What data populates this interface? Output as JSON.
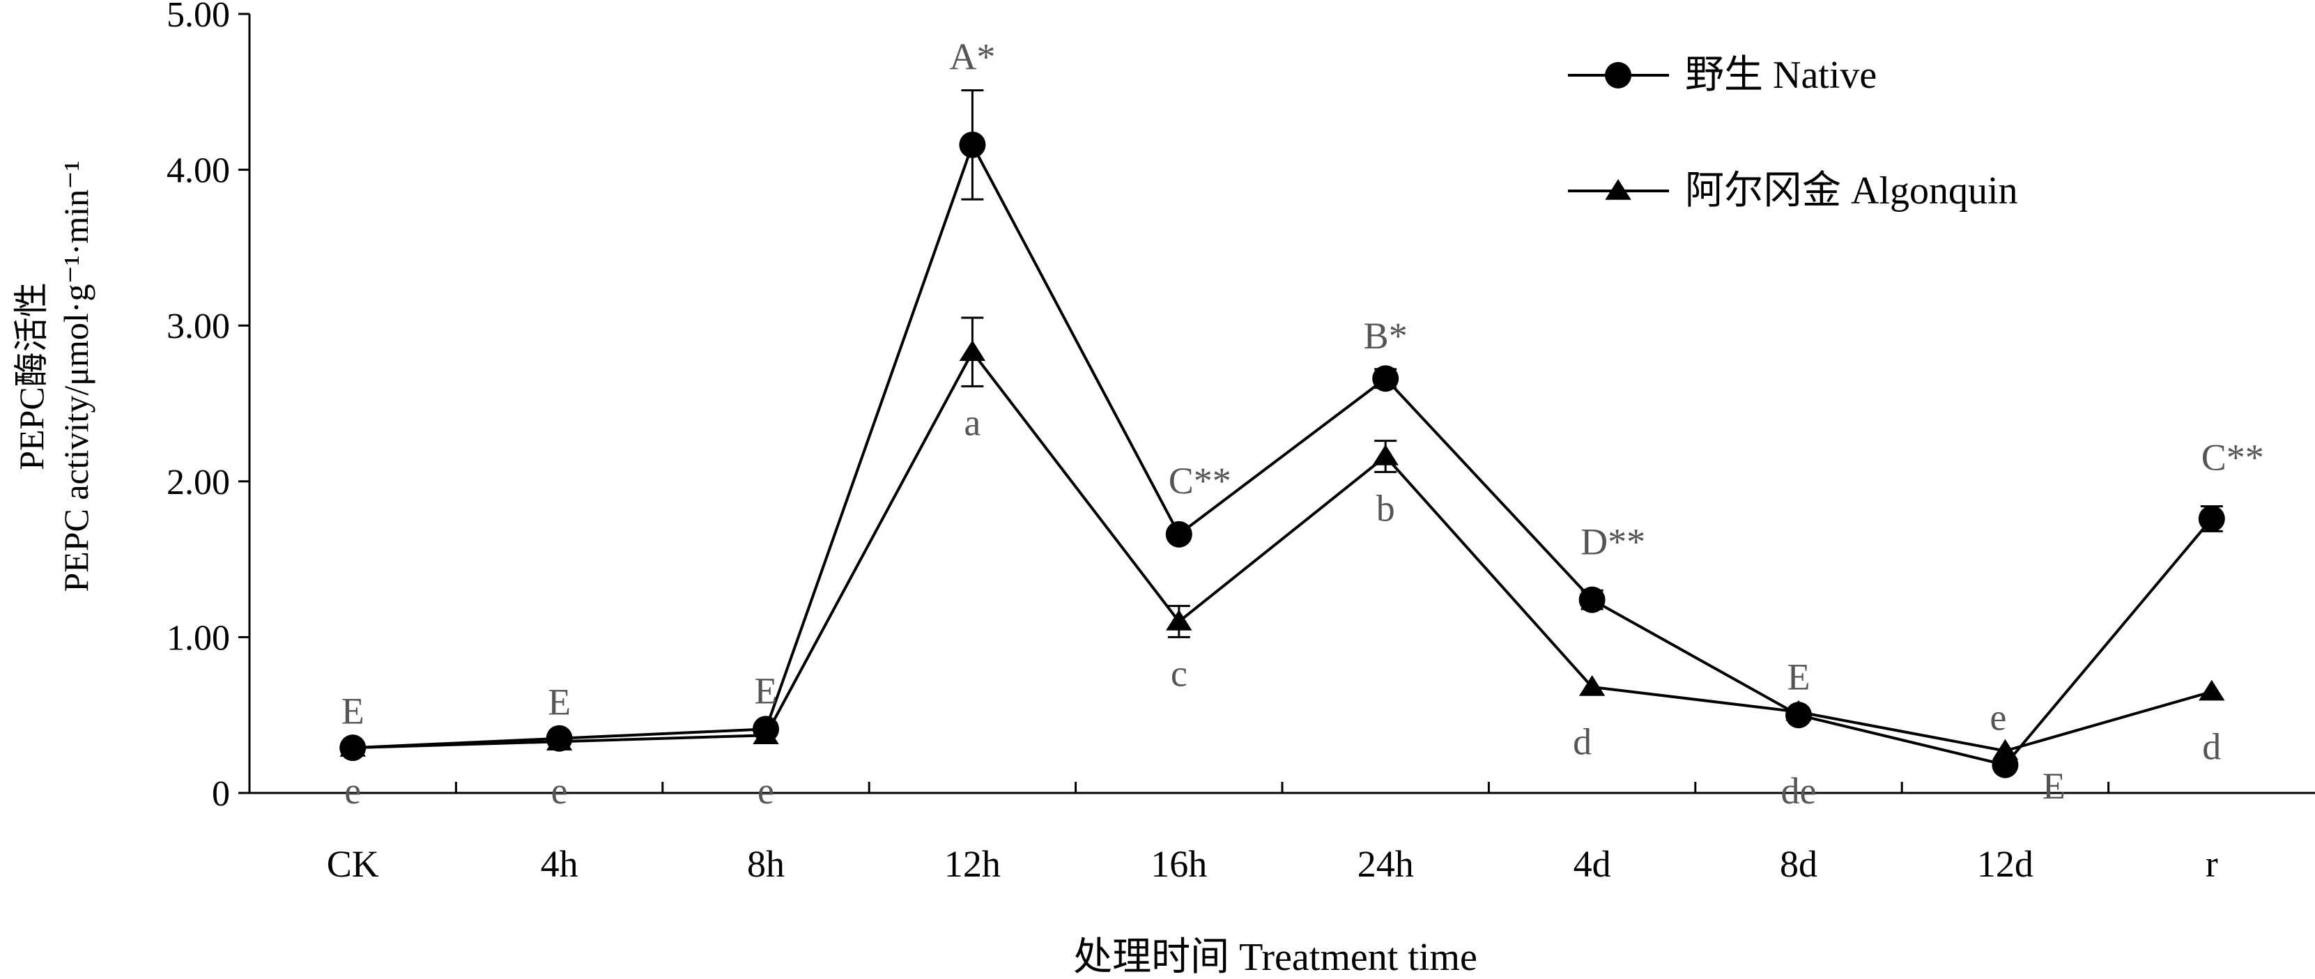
{
  "chart_data": {
    "type": "line",
    "xlabel": "处理时间 Treatment time",
    "ylabel_line1": "PEPC酶活性",
    "ylabel_line2": "PEPC activity/μmol·g⁻¹·min⁻¹",
    "ylim": [
      0,
      5
    ],
    "yticks": [
      0,
      1,
      2,
      3,
      4,
      5
    ],
    "ytick_labels": [
      "0",
      "1.00",
      "2.00",
      "3.00",
      "4.00",
      "5.00"
    ],
    "categories": [
      "CK",
      "4h",
      "8h",
      "12h",
      "16h",
      "24h",
      "4d",
      "8d",
      "12d",
      "r"
    ],
    "legend_position": "top-right",
    "series": [
      {
        "name": "野生 Native",
        "marker": "circle",
        "values": [
          0.29,
          0.35,
          0.41,
          4.16,
          1.66,
          2.66,
          1.24,
          0.5,
          0.18,
          1.76
        ],
        "errors": [
          0.02,
          0.02,
          0.03,
          0.35,
          0.03,
          0.06,
          0.06,
          0.03,
          0.03,
          0.08
        ],
        "labels": [
          "E",
          "E",
          "E",
          "A*",
          "C**",
          "B*",
          "D**",
          "E",
          "E",
          "C**"
        ]
      },
      {
        "name": "阿尔冈金 Algonquin",
        "marker": "triangle",
        "values": [
          0.29,
          0.33,
          0.37,
          2.83,
          1.1,
          2.16,
          0.68,
          0.52,
          0.27,
          0.65
        ],
        "errors": [
          0.02,
          0.02,
          0.03,
          0.22,
          0.1,
          0.1,
          0.03,
          0.03,
          0.03,
          0.03
        ],
        "labels": [
          "e",
          "e",
          "e",
          "a",
          "c",
          "b",
          "d",
          "de",
          "e",
          "d"
        ]
      }
    ]
  }
}
